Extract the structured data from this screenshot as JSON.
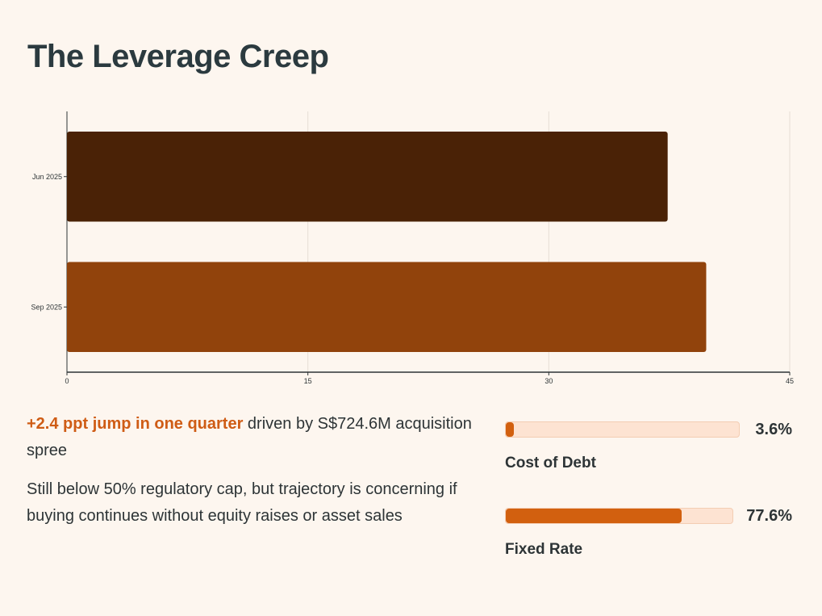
{
  "title": "The Leverage Creep",
  "colors": {
    "background": "#fdf6ef",
    "bar_jun": "#4a2206",
    "bar_sep": "#91430c",
    "accent": "#d2600f",
    "track": "#fde3d2"
  },
  "chart_data": {
    "type": "bar",
    "orientation": "horizontal",
    "title": "The Leverage Creep",
    "categories": [
      "Jun 2025",
      "Sep 2025"
    ],
    "values": [
      37.4,
      39.8
    ],
    "xlim": [
      0,
      45
    ],
    "xticks": [
      "0",
      "15",
      "30",
      "45"
    ],
    "xlabel": "",
    "ylabel": "",
    "grid": true
  },
  "notes": {
    "highlight": "+2.4 ppt jump in one quarter",
    "line1_rest": " driven by S$724.6M acquisition spree",
    "line2": "Still below 50% regulatory cap, but trajectory is concerning if buying continues without equity raises or asset sales"
  },
  "metrics": [
    {
      "label": "Cost of Debt",
      "value_text": "3.6%",
      "fill_fraction": 0.036
    },
    {
      "label": "Fixed Rate",
      "value_text": "77.6%",
      "fill_fraction": 0.776
    }
  ]
}
